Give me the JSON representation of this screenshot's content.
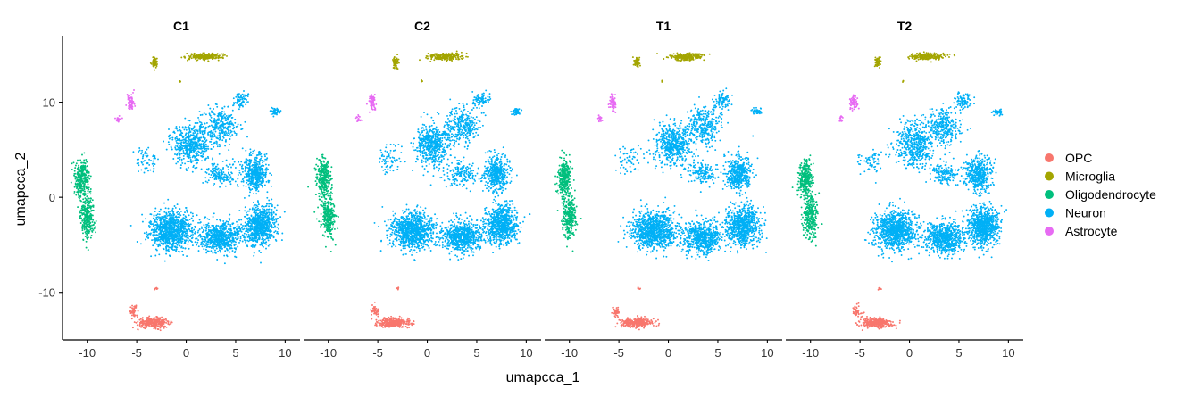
{
  "chart_data": {
    "type": "scatter",
    "xlabel": "umapcca_1",
    "ylabel": "umapcca_2",
    "xlim": [
      -12.5,
      11.5
    ],
    "ylim": [
      -15,
      17
    ],
    "xticks": [
      -10,
      -5,
      0,
      5,
      10
    ],
    "yticks": [
      -10,
      0,
      10
    ],
    "legend_position": "right",
    "grid": false,
    "panels": [
      {
        "title": "C1"
      },
      {
        "title": "C2"
      },
      {
        "title": "T1"
      },
      {
        "title": "T2"
      }
    ],
    "series": [
      {
        "name": "OPC",
        "color": "#F8766D",
        "clusters": [
          {
            "center": [
              -3.3,
              -13.2
            ],
            "spread": [
              1.6,
              0.5
            ],
            "count": 320
          },
          {
            "center": [
              -5.3,
              -12.0
            ],
            "spread": [
              0.4,
              0.6
            ],
            "count": 50
          },
          {
            "center": [
              -3.0,
              -9.6
            ],
            "spread": [
              0.15,
              0.15
            ],
            "count": 6
          }
        ]
      },
      {
        "name": "Microglia",
        "color": "#A3A500",
        "clusters": [
          {
            "center": [
              1.8,
              14.8
            ],
            "spread": [
              1.8,
              0.35
            ],
            "count": 230
          },
          {
            "center": [
              -3.2,
              14.2
            ],
            "spread": [
              0.3,
              0.55
            ],
            "count": 60
          },
          {
            "center": [
              -0.6,
              12.2
            ],
            "spread": [
              0.1,
              0.1
            ],
            "count": 4
          }
        ]
      },
      {
        "name": "Oligodendrocyte",
        "color": "#00BF7D",
        "clusters": [
          {
            "center": [
              -10.5,
              2.0
            ],
            "spread": [
              0.7,
              2.0
            ],
            "count": 300
          },
          {
            "center": [
              -10.0,
              -2.0
            ],
            "spread": [
              0.7,
              2.2
            ],
            "count": 300
          }
        ]
      },
      {
        "name": "Neuron",
        "color": "#00B0F6",
        "clusters": [
          {
            "center": [
              -1.5,
              -3.5
            ],
            "spread": [
              2.2,
              2.0
            ],
            "count": 950
          },
          {
            "center": [
              3.5,
              -4.2
            ],
            "spread": [
              2.0,
              1.6
            ],
            "count": 650
          },
          {
            "center": [
              7.5,
              -3.0
            ],
            "spread": [
              1.6,
              2.0
            ],
            "count": 750
          },
          {
            "center": [
              7.0,
              2.5
            ],
            "spread": [
              1.3,
              1.8
            ],
            "count": 450
          },
          {
            "center": [
              0.5,
              5.5
            ],
            "spread": [
              1.8,
              2.2
            ],
            "count": 500
          },
          {
            "center": [
              3.5,
              7.5
            ],
            "spread": [
              1.8,
              2.0
            ],
            "count": 300
          },
          {
            "center": [
              5.5,
              10.2
            ],
            "spread": [
              0.9,
              0.8
            ],
            "count": 80
          },
          {
            "center": [
              9.0,
              9.0
            ],
            "spread": [
              0.5,
              0.4
            ],
            "count": 40
          },
          {
            "center": [
              3.5,
              2.5
            ],
            "spread": [
              1.5,
              1.2
            ],
            "count": 150
          },
          {
            "center": [
              -4.0,
              4.0
            ],
            "spread": [
              1.2,
              1.6
            ],
            "count": 60
          }
        ]
      },
      {
        "name": "Astrocyte",
        "color": "#E76BF3",
        "clusters": [
          {
            "center": [
              -5.6,
              10.0
            ],
            "spread": [
              0.35,
              0.8
            ],
            "count": 70
          },
          {
            "center": [
              -6.9,
              8.2
            ],
            "spread": [
              0.25,
              0.35
            ],
            "count": 18
          }
        ]
      }
    ]
  }
}
